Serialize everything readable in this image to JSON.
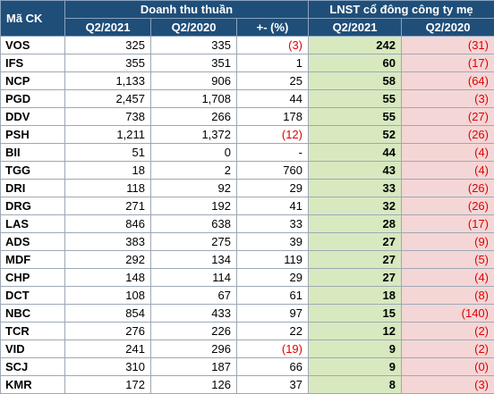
{
  "header": {
    "ma_ck": "Mã CK",
    "doanh_thu": "Doanh thu thuần",
    "lnst": "LNST cổ đông công ty mẹ",
    "q2_2021": "Q2/2021",
    "q2_2020": "Q2/2020",
    "change": "+- (%)",
    "lnst_q2_2021": "Q2/2021",
    "lnst_q2_2020": "Q2/2020"
  },
  "rows": [
    {
      "code": "VOS",
      "rev_2021": "325",
      "rev_2020": "335",
      "change": "(3)",
      "lnst_2021": "242",
      "lnst_2020": "(31)"
    },
    {
      "code": "IFS",
      "rev_2021": "355",
      "rev_2020": "351",
      "change": "1",
      "lnst_2021": "60",
      "lnst_2020": "(17)"
    },
    {
      "code": "NCP",
      "rev_2021": "1,133",
      "rev_2020": "906",
      "change": "25",
      "lnst_2021": "58",
      "lnst_2020": "(64)"
    },
    {
      "code": "PGD",
      "rev_2021": "2,457",
      "rev_2020": "1,708",
      "change": "44",
      "lnst_2021": "55",
      "lnst_2020": "(3)"
    },
    {
      "code": "DDV",
      "rev_2021": "738",
      "rev_2020": "266",
      "change": "178",
      "lnst_2021": "55",
      "lnst_2020": "(27)"
    },
    {
      "code": "PSH",
      "rev_2021": "1,211",
      "rev_2020": "1,372",
      "change": "(12)",
      "lnst_2021": "52",
      "lnst_2020": "(26)"
    },
    {
      "code": "BII",
      "rev_2021": "51",
      "rev_2020": "0",
      "change": "-",
      "lnst_2021": "44",
      "lnst_2020": "(4)"
    },
    {
      "code": "TGG",
      "rev_2021": "18",
      "rev_2020": "2",
      "change": "760",
      "lnst_2021": "43",
      "lnst_2020": "(4)"
    },
    {
      "code": "DRI",
      "rev_2021": "118",
      "rev_2020": "92",
      "change": "29",
      "lnst_2021": "33",
      "lnst_2020": "(26)"
    },
    {
      "code": "DRG",
      "rev_2021": "271",
      "rev_2020": "192",
      "change": "41",
      "lnst_2021": "32",
      "lnst_2020": "(26)"
    },
    {
      "code": "LAS",
      "rev_2021": "846",
      "rev_2020": "638",
      "change": "33",
      "lnst_2021": "28",
      "lnst_2020": "(17)"
    },
    {
      "code": "ADS",
      "rev_2021": "383",
      "rev_2020": "275",
      "change": "39",
      "lnst_2021": "27",
      "lnst_2020": "(9)"
    },
    {
      "code": "MDF",
      "rev_2021": "292",
      "rev_2020": "134",
      "change": "119",
      "lnst_2021": "27",
      "lnst_2020": "(5)"
    },
    {
      "code": "CHP",
      "rev_2021": "148",
      "rev_2020": "114",
      "change": "29",
      "lnst_2021": "27",
      "lnst_2020": "(4)"
    },
    {
      "code": "DCT",
      "rev_2021": "108",
      "rev_2020": "67",
      "change": "61",
      "lnst_2021": "18",
      "lnst_2020": "(8)"
    },
    {
      "code": "NBC",
      "rev_2021": "854",
      "rev_2020": "433",
      "change": "97",
      "lnst_2021": "15",
      "lnst_2020": "(140)"
    },
    {
      "code": "TCR",
      "rev_2021": "276",
      "rev_2020": "226",
      "change": "22",
      "lnst_2021": "12",
      "lnst_2020": "(2)"
    },
    {
      "code": "VID",
      "rev_2021": "241",
      "rev_2020": "296",
      "change": "(19)",
      "lnst_2021": "9",
      "lnst_2020": "(2)"
    },
    {
      "code": "SCJ",
      "rev_2021": "310",
      "rev_2020": "187",
      "change": "66",
      "lnst_2021": "9",
      "lnst_2020": "(0)"
    },
    {
      "code": "KMR",
      "rev_2021": "172",
      "rev_2020": "126",
      "change": "37",
      "lnst_2021": "8",
      "lnst_2020": "(3)"
    }
  ],
  "colors": {
    "header_bg": "#1f4e79",
    "header_text": "#ffffff",
    "lnst_current_bg": "#d8e9c0",
    "lnst_prior_bg": "#f4d6d6",
    "negative_text": "#e00000"
  }
}
